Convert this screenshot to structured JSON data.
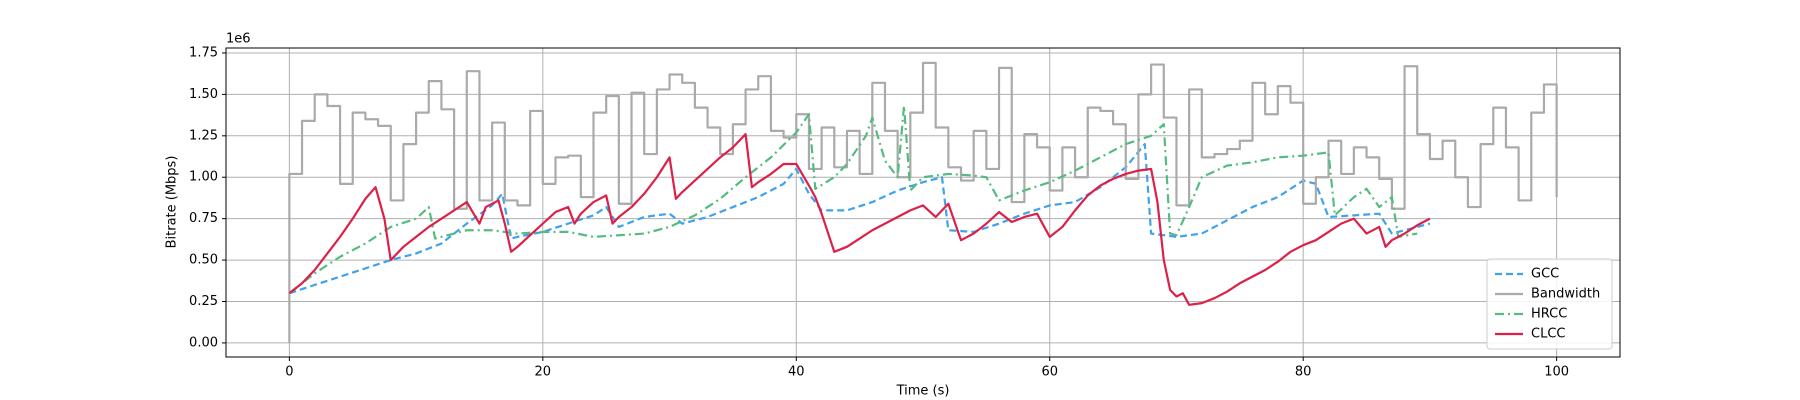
{
  "chart_data": {
    "type": "line",
    "xlabel": "Time (s)",
    "ylabel": "Bitrate (Mbps)",
    "y_offset_label": "1e6",
    "xlim": [
      -5,
      105
    ],
    "ylim": [
      -0.085,
      1.78
    ],
    "xticks": [
      0,
      20,
      40,
      60,
      80,
      100
    ],
    "yticks": [
      {
        "value": 0,
        "label": "0.00"
      },
      {
        "value": 0.25,
        "label": "0.25"
      },
      {
        "value": 0.5,
        "label": "0.50"
      },
      {
        "value": 0.75,
        "label": "0.75"
      },
      {
        "value": 1,
        "label": "1.00"
      },
      {
        "value": 1.25,
        "label": "1.25"
      },
      {
        "value": 1.5,
        "label": "1.50"
      },
      {
        "value": 1.75,
        "label": "1.75"
      }
    ],
    "grid": true,
    "legend": "lower right",
    "series": [
      {
        "name": "GCC",
        "color": "#3fa2ee",
        "linestyle": "dashed",
        "x": [
          0,
          2,
          4,
          6,
          8,
          10,
          12,
          14,
          16,
          16.8,
          17.5,
          18,
          20,
          22,
          24,
          25,
          26,
          28,
          30,
          31,
          33,
          35,
          37,
          39,
          40,
          41,
          42,
          44,
          46,
          48,
          50,
          51.5,
          52,
          54,
          56,
          58,
          60,
          62,
          64,
          66,
          67.5,
          68,
          70,
          72,
          74,
          76,
          78,
          80,
          81,
          82,
          84,
          86,
          87,
          88,
          90
        ],
        "values": [
          0.3,
          0.35,
          0.4,
          0.45,
          0.5,
          0.54,
          0.6,
          0.72,
          0.83,
          0.9,
          0.63,
          0.64,
          0.67,
          0.72,
          0.77,
          0.82,
          0.7,
          0.76,
          0.78,
          0.72,
          0.76,
          0.82,
          0.88,
          0.96,
          1.05,
          0.9,
          0.8,
          0.8,
          0.85,
          0.92,
          0.97,
          1.0,
          0.68,
          0.67,
          0.72,
          0.78,
          0.83,
          0.85,
          0.94,
          1.06,
          1.2,
          0.66,
          0.64,
          0.66,
          0.74,
          0.82,
          0.88,
          0.98,
          0.96,
          0.76,
          0.77,
          0.78,
          0.66,
          0.68,
          0.72
        ]
      },
      {
        "name": "Bandwidth",
        "color": "#aaaaaa",
        "linestyle": "solid",
        "drawstyle": "steps-post",
        "x": [
          0,
          0,
          1,
          2,
          3,
          4,
          5,
          6,
          7,
          8,
          9,
          10,
          11,
          12,
          13,
          14,
          15,
          16,
          17,
          18,
          19,
          20,
          21,
          22,
          23,
          24,
          25,
          26,
          27,
          28,
          29,
          30,
          31,
          32,
          33,
          34,
          35,
          36,
          37,
          38,
          39,
          40,
          41,
          42,
          43,
          44,
          45,
          46,
          47,
          48,
          49,
          50,
          51,
          52,
          53,
          54,
          55,
          56,
          57,
          58,
          59,
          60,
          61,
          62,
          63,
          64,
          65,
          66,
          67,
          68,
          69,
          70,
          71,
          72,
          73,
          74,
          75,
          76,
          77,
          78,
          79,
          80,
          81,
          82,
          83,
          84,
          85,
          86,
          87,
          88,
          89,
          90,
          91,
          92,
          93,
          94,
          95,
          96,
          97,
          98,
          99,
          100
        ],
        "values": [
          0,
          1.02,
          1.34,
          1.5,
          1.43,
          0.96,
          1.39,
          1.35,
          1.31,
          0.86,
          1.2,
          1.39,
          1.58,
          1.41,
          0.81,
          1.64,
          0.86,
          1.33,
          0.86,
          0.83,
          1.4,
          0.96,
          1.12,
          1.13,
          0.88,
          1.39,
          1.49,
          0.84,
          1.51,
          1.14,
          1.53,
          1.62,
          1.57,
          1.42,
          1.3,
          1.14,
          1.32,
          1.53,
          1.61,
          1.28,
          1.24,
          1.38,
          1.05,
          1.3,
          1.06,
          1.28,
          1.02,
          1.57,
          1.28,
          1.0,
          1.39,
          1.69,
          1.3,
          1.06,
          0.98,
          1.28,
          1.05,
          1.66,
          0.85,
          1.26,
          1.18,
          0.92,
          1.18,
          1.0,
          1.42,
          1.4,
          1.32,
          0.99,
          1.5,
          1.68,
          1.36,
          0.83,
          1.53,
          1.12,
          1.14,
          1.17,
          1.22,
          1.57,
          1.38,
          1.55,
          1.45,
          0.84,
          1.0,
          1.22,
          1.02,
          1.18,
          1.12,
          0.99,
          0.81,
          1.67,
          1.26,
          1.11,
          1.22,
          1.0,
          0.82,
          1.2,
          1.42,
          1.18,
          0.86,
          1.39,
          1.56,
          0.88
        ]
      },
      {
        "name": "HRCC",
        "color": "#55bb80",
        "linestyle": "dashdot",
        "x": [
          0,
          2,
          4,
          6,
          8,
          10,
          11,
          11.5,
          13,
          14,
          16,
          18,
          20,
          22,
          24,
          26,
          28,
          30,
          32,
          34,
          36,
          38,
          40,
          41,
          41.5,
          43,
          44,
          45.5,
          46,
          47,
          48,
          48.5,
          49,
          50,
          52,
          54,
          55,
          56,
          58,
          60,
          62,
          64,
          66,
          68,
          69,
          69.5,
          70,
          71,
          72,
          74,
          76,
          78,
          80,
          82,
          82.5,
          84,
          85,
          86,
          87,
          87.5,
          89
        ],
        "values": [
          0.3,
          0.42,
          0.52,
          0.6,
          0.7,
          0.75,
          0.82,
          0.63,
          0.66,
          0.68,
          0.68,
          0.66,
          0.67,
          0.67,
          0.64,
          0.65,
          0.66,
          0.7,
          0.77,
          0.87,
          1.0,
          1.12,
          1.27,
          1.38,
          0.93,
          1.0,
          1.08,
          1.25,
          1.36,
          1.1,
          1.0,
          1.43,
          0.92,
          1.0,
          1.02,
          1.01,
          1.0,
          0.86,
          0.92,
          0.97,
          1.04,
          1.12,
          1.2,
          1.25,
          1.32,
          0.66,
          0.65,
          0.82,
          1.0,
          1.07,
          1.09,
          1.12,
          1.13,
          1.15,
          0.77,
          0.88,
          0.93,
          0.82,
          0.88,
          0.64,
          0.66
        ]
      },
      {
        "name": "CLCC",
        "color": "#dc2048",
        "linestyle": "solid",
        "x": [
          0,
          1,
          2,
          3,
          4,
          5,
          6,
          6.8,
          7.5,
          8,
          9,
          10,
          11,
          12,
          13,
          14,
          15,
          15.5,
          16.5,
          17,
          17.5,
          18,
          19,
          20,
          21,
          22,
          22.5,
          23,
          24,
          25,
          25.5,
          26,
          27,
          28,
          29,
          30,
          30.5,
          31,
          32,
          33,
          34,
          35,
          36,
          36.5,
          37,
          38,
          39,
          40,
          41,
          41.5,
          42,
          43,
          44,
          45,
          46,
          47,
          48,
          49,
          50,
          51,
          52,
          53,
          54,
          55,
          56,
          57,
          58,
          59,
          60,
          61,
          62,
          63,
          64,
          65,
          66,
          67,
          68,
          68.5,
          69,
          69.5,
          70,
          70.5,
          71,
          72,
          73,
          74,
          75,
          76,
          77,
          78,
          79,
          80,
          81,
          82,
          83,
          84,
          85,
          86,
          86.5,
          87,
          88,
          89,
          90
        ],
        "values": [
          0.3,
          0.36,
          0.44,
          0.54,
          0.64,
          0.75,
          0.87,
          0.94,
          0.75,
          0.5,
          0.58,
          0.64,
          0.7,
          0.75,
          0.8,
          0.85,
          0.72,
          0.82,
          0.86,
          0.72,
          0.55,
          0.58,
          0.65,
          0.72,
          0.79,
          0.82,
          0.72,
          0.78,
          0.85,
          0.89,
          0.72,
          0.76,
          0.82,
          0.9,
          1.0,
          1.12,
          0.87,
          0.91,
          0.98,
          1.05,
          1.12,
          1.18,
          1.26,
          0.94,
          0.97,
          1.02,
          1.08,
          1.08,
          0.95,
          0.88,
          0.78,
          0.55,
          0.58,
          0.63,
          0.68,
          0.72,
          0.76,
          0.8,
          0.83,
          0.76,
          0.84,
          0.62,
          0.66,
          0.72,
          0.79,
          0.73,
          0.76,
          0.78,
          0.64,
          0.7,
          0.8,
          0.89,
          0.95,
          0.99,
          1.02,
          1.04,
          1.05,
          0.85,
          0.5,
          0.32,
          0.28,
          0.3,
          0.23,
          0.24,
          0.27,
          0.31,
          0.36,
          0.4,
          0.44,
          0.49,
          0.55,
          0.59,
          0.62,
          0.67,
          0.72,
          0.75,
          0.66,
          0.7,
          0.58,
          0.62,
          0.66,
          0.71,
          0.75
        ]
      }
    ]
  }
}
